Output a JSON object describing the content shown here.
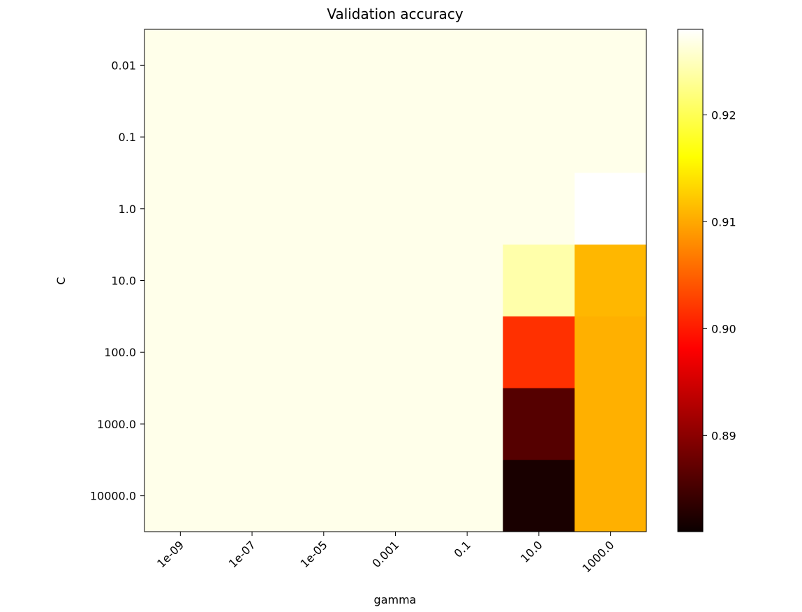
{
  "chart_data": {
    "type": "heatmap",
    "title": "Validation accuracy",
    "xlabel": "gamma",
    "ylabel": "C",
    "x_categories": [
      "1e-09",
      "1e-07",
      "1e-05",
      "0.001",
      "0.1",
      "10.0",
      "1000.0"
    ],
    "y_categories": [
      "0.01",
      "0.1",
      "1.0",
      "10.0",
      "100.0",
      "1000.0",
      "10000.0"
    ],
    "values": [
      [
        0.927,
        0.927,
        0.927,
        0.927,
        0.927,
        0.927,
        0.927
      ],
      [
        0.927,
        0.927,
        0.927,
        0.927,
        0.927,
        0.927,
        0.927
      ],
      [
        0.927,
        0.927,
        0.927,
        0.927,
        0.927,
        0.927,
        0.928
      ],
      [
        0.927,
        0.927,
        0.927,
        0.927,
        0.927,
        0.924,
        0.911
      ],
      [
        0.927,
        0.927,
        0.927,
        0.927,
        0.927,
        0.9015,
        0.9105
      ],
      [
        0.927,
        0.927,
        0.927,
        0.927,
        0.927,
        0.886,
        0.9105
      ],
      [
        0.927,
        0.927,
        0.927,
        0.927,
        0.927,
        0.882,
        0.9105
      ]
    ],
    "colormap": "hot",
    "colorbar": {
      "range": [
        0.881,
        0.928
      ],
      "ticks": [
        0.89,
        0.9,
        0.91,
        0.92
      ],
      "tick_labels": [
        "0.89",
        "0.90",
        "0.91",
        "0.92"
      ]
    },
    "grid": false
  }
}
